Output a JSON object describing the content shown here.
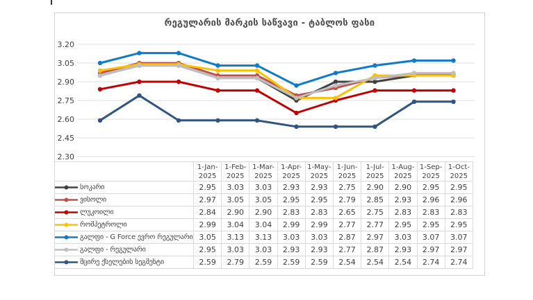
{
  "title": "რეგულარის მარკის საწვავი - ტაბლოს ფასი",
  "chart_data": {
    "type": "line",
    "title": "რეგულარის მარკის საწვავი - ტაბლოს ფასი",
    "x": [
      "1-Jan-2025",
      "1-Feb-2025",
      "1-Mar-2025",
      "1-Apr-2025",
      "1-May-2025",
      "1-Jun-2025",
      "1-Jul-2025",
      "1-Aug-2025",
      "1-Sep-2025",
      "1-Oct-2025"
    ],
    "ylim": [
      2.3,
      3.2
    ],
    "yticks": [
      "3.20",
      "3.05",
      "2.90",
      "2.75",
      "2.60",
      "2.45",
      "2.30"
    ],
    "grid": true,
    "legend_position": "table-left-column",
    "gridline_color": "#dcdcdc",
    "series": [
      {
        "name": "სოკარი",
        "color": "#404040",
        "values": [
          2.95,
          3.03,
          3.03,
          2.93,
          2.93,
          2.75,
          2.9,
          2.9,
          2.95,
          2.95
        ]
      },
      {
        "name": "ვისოლი",
        "color": "#C0504D",
        "values": [
          2.97,
          3.05,
          3.05,
          2.95,
          2.95,
          2.79,
          2.85,
          2.93,
          2.96,
          2.96
        ]
      },
      {
        "name": "ლუკოილი",
        "color": "#C00000",
        "values": [
          2.84,
          2.9,
          2.9,
          2.83,
          2.83,
          2.65,
          2.75,
          2.83,
          2.83,
          2.83
        ]
      },
      {
        "name": "რომპეტროლი",
        "color": "#FFC000",
        "values": [
          2.99,
          3.04,
          3.04,
          2.99,
          2.99,
          2.77,
          2.77,
          2.95,
          2.95,
          2.95
        ]
      },
      {
        "name": "გალფი - G Force ევრო რეგულარი",
        "color": "#0E7AC8",
        "values": [
          3.05,
          3.13,
          3.13,
          3.03,
          3.03,
          2.87,
          2.97,
          3.03,
          3.07,
          3.07
        ]
      },
      {
        "name": "გალფი - რეგულარი",
        "color": "#BFBFBF",
        "values": [
          2.95,
          3.03,
          3.03,
          2.93,
          2.93,
          2.77,
          2.87,
          2.93,
          2.97,
          2.97
        ]
      },
      {
        "name": "მცირე ქსელების სეგმენტი",
        "color": "#2F5580",
        "values": [
          2.59,
          2.79,
          2.59,
          2.59,
          2.59,
          2.54,
          2.54,
          2.54,
          2.74,
          2.74
        ]
      }
    ]
  }
}
